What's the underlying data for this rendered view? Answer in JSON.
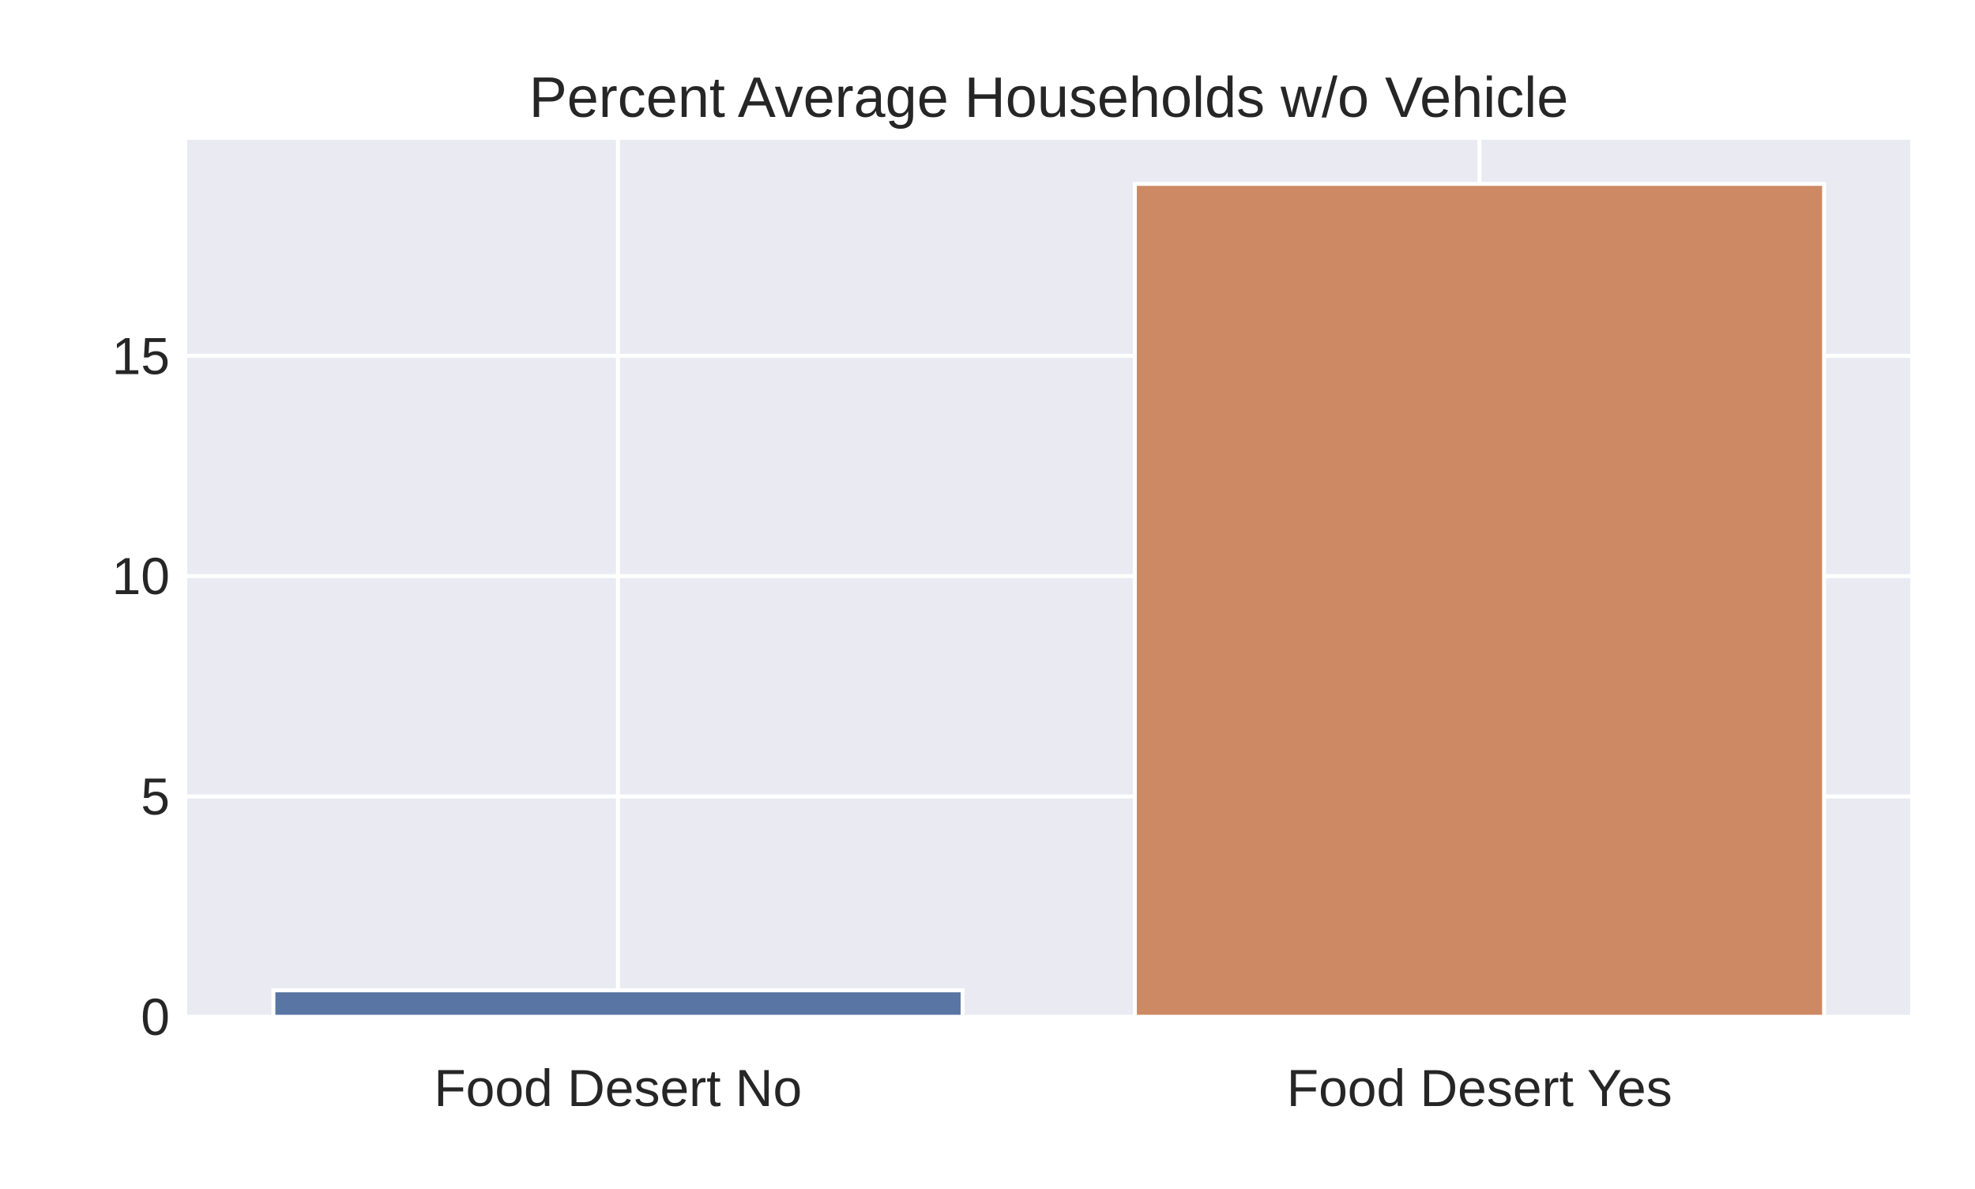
{
  "chart_data": {
    "type": "bar",
    "title": "Percent Average Households w/o Vehicle",
    "xlabel": "",
    "ylabel": "",
    "categories": [
      "Food Desert No",
      "Food Desert Yes"
    ],
    "values": [
      0.6,
      18.9
    ],
    "ylim": [
      0,
      19.9
    ],
    "yticks": [
      0,
      5,
      10,
      15
    ],
    "ytick_labels": [
      "0",
      "5",
      "10",
      "15"
    ],
    "grid": true,
    "legend": "none",
    "colors": {
      "plot_background": "#EAEAF2",
      "grid": "#FFFFFF",
      "bars": [
        "#5975A4",
        "#CC8963"
      ],
      "text": "#262626"
    }
  }
}
